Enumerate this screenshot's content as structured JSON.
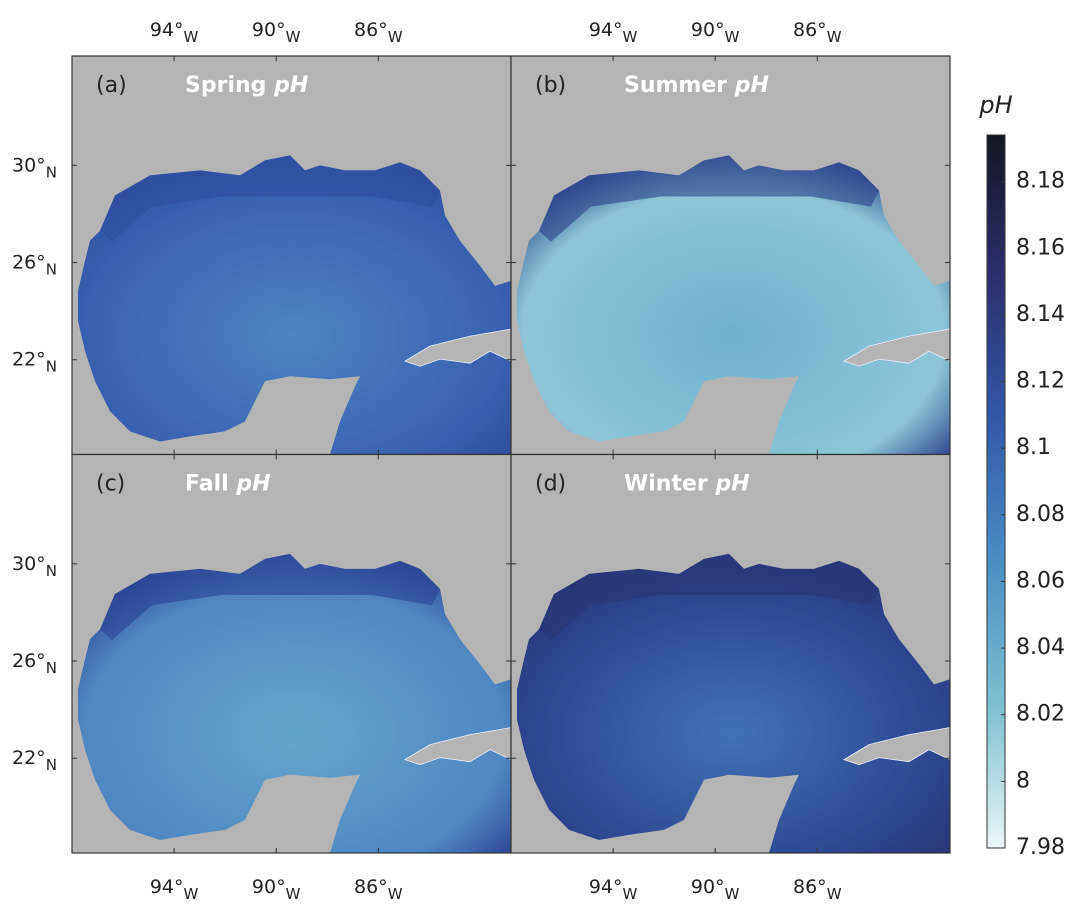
{
  "chart_data": {
    "type": "map",
    "panels": [
      {
        "label": "(a)",
        "season": "Spring",
        "variable": "pH",
        "colors": [
          "#3a5fb0",
          "#4d86c2",
          "#2f4d9e"
        ]
      },
      {
        "label": "(b)",
        "season": "Summer",
        "variable": "pH",
        "colors": [
          "#8cc6d6",
          "#6fb1cd",
          "#2b3f8a"
        ]
      },
      {
        "label": "(c)",
        "season": "Fall",
        "variable": "pH",
        "colors": [
          "#4f87c3",
          "#63a6cc",
          "#2c4192"
        ]
      },
      {
        "label": "(d)",
        "season": "Winter",
        "variable": "pH",
        "colors": [
          "#2e448f",
          "#3f72b7",
          "#283674"
        ]
      }
    ],
    "xlim": [
      -98,
      -80.8
    ],
    "ylim": [
      18.1,
      34.5
    ],
    "xticks": [
      {
        "value": -94,
        "label": "94°",
        "hemisphere": "W"
      },
      {
        "value": -90,
        "label": "90°",
        "hemisphere": "W"
      },
      {
        "value": -86,
        "label": "86°",
        "hemisphere": "W"
      }
    ],
    "yticks": [
      {
        "value": 30,
        "label": "30°",
        "hemisphere": "N"
      },
      {
        "value": 26,
        "label": "26°",
        "hemisphere": "N"
      },
      {
        "value": 22,
        "label": "22°",
        "hemisphere": "N"
      }
    ],
    "colorbar": {
      "label": "pH",
      "lim": [
        7.98,
        8.194
      ],
      "ticks": [
        7.98,
        8,
        8.02,
        8.04,
        8.06,
        8.08,
        8.1,
        8.12,
        8.14,
        8.16,
        8.18
      ],
      "colormap": [
        "#eaf6f8",
        "#7cc0cf",
        "#4a8fc4",
        "#3358a8",
        "#2c2f6e",
        "#141622"
      ]
    },
    "land_color": "#b4b4b4"
  }
}
